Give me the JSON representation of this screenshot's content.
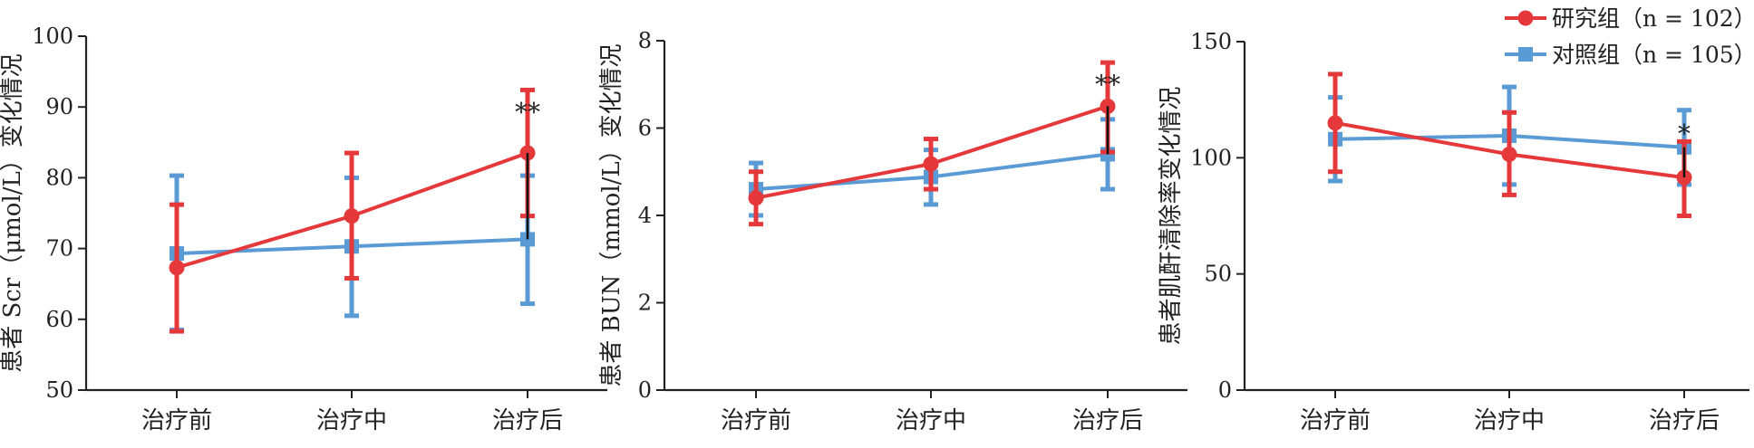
{
  "legend": {
    "series": [
      {
        "name": "研究组（n = 102）",
        "color": "#e5383b",
        "marker": "circle"
      },
      {
        "name": "对照组（n = 105）",
        "color": "#5b9bd5",
        "marker": "square"
      }
    ]
  },
  "chart_data": [
    {
      "type": "line",
      "categories": [
        "治疗前",
        "治疗中",
        "治疗后"
      ],
      "ylabel": "患者 Scr（μmol/L）变化情况",
      "ylim": [
        50,
        100
      ],
      "yticks": [
        50,
        60,
        70,
        80,
        90,
        100
      ],
      "series": [
        {
          "name": "研究组（n = 102）",
          "color": "#e5383b",
          "values": [
            67.3,
            74.6,
            83.5
          ],
          "err_low": [
            58.3,
            65.8,
            74.6
          ],
          "err_high": [
            76.2,
            83.5,
            92.4
          ]
        },
        {
          "name": "对照组（n = 105）",
          "color": "#5b9bd5",
          "values": [
            69.3,
            70.3,
            71.3
          ],
          "err_low": [
            58.5,
            60.5,
            62.2
          ],
          "err_high": [
            80.3,
            80.0,
            80.3
          ]
        }
      ],
      "annotations": [
        {
          "category": "治疗后",
          "text": "**"
        }
      ]
    },
    {
      "type": "line",
      "categories": [
        "治疗前",
        "治疗中",
        "治疗后"
      ],
      "ylabel": "患者 BUN（mmol/L）变化情况",
      "ylim": [
        0,
        8
      ],
      "yticks": [
        0,
        2,
        4,
        6,
        8
      ],
      "series": [
        {
          "name": "研究组（n = 102）",
          "color": "#e5383b",
          "values": [
            4.4,
            5.18,
            6.5
          ],
          "err_low": [
            3.8,
            4.6,
            5.45
          ],
          "err_high": [
            5.0,
            5.75,
            7.5
          ]
        },
        {
          "name": "对照组（n = 105）",
          "color": "#5b9bd5",
          "values": [
            4.6,
            4.88,
            5.4
          ],
          "err_low": [
            4.0,
            4.25,
            4.6
          ],
          "err_high": [
            5.2,
            5.5,
            6.2
          ]
        }
      ],
      "annotations": [
        {
          "category": "治疗后",
          "text": "**"
        }
      ]
    },
    {
      "type": "line",
      "categories": [
        "治疗前",
        "治疗中",
        "治疗后"
      ],
      "ylabel": "患者肌酐清除率变化情况",
      "ylim": [
        0,
        150
      ],
      "yticks": [
        0,
        50,
        100,
        150
      ],
      "series": [
        {
          "name": "研究组（n = 102）",
          "color": "#e5383b",
          "values": [
            115,
            101.5,
            91.5
          ],
          "err_low": [
            94,
            84,
            75
          ],
          "err_high": [
            136,
            119.5,
            107
          ]
        },
        {
          "name": "对照组（n = 105）",
          "color": "#5b9bd5",
          "values": [
            108,
            109.5,
            104.5
          ],
          "err_low": [
            90,
            88.5,
            88.5
          ],
          "err_high": [
            126,
            130.5,
            120.5
          ]
        }
      ],
      "annotations": [
        {
          "category": "治疗后",
          "text": "*"
        }
      ]
    }
  ]
}
